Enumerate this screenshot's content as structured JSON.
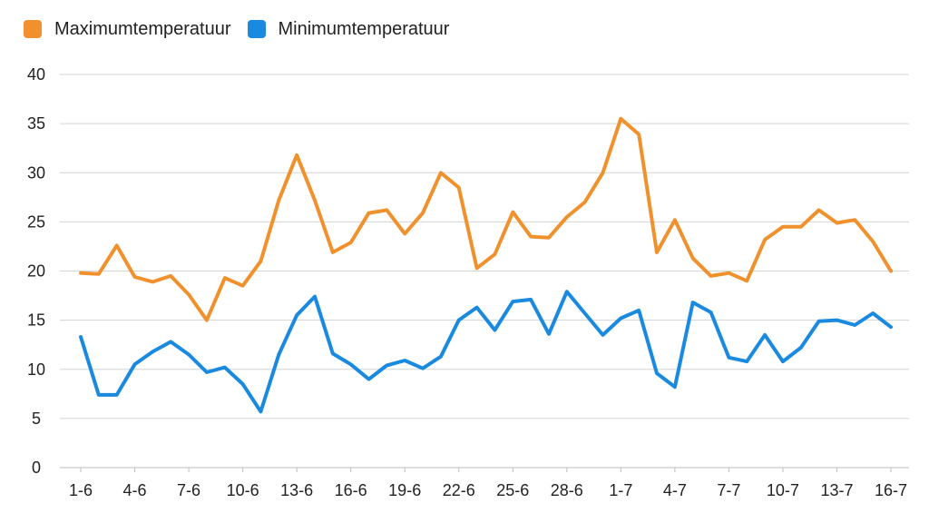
{
  "chart_data": {
    "type": "line",
    "title": "",
    "xlabel": "",
    "ylabel": "",
    "ylim": [
      0,
      40
    ],
    "yticks": [
      0,
      5,
      10,
      15,
      20,
      25,
      30,
      35,
      40
    ],
    "grid": true,
    "legend_position": "top-left",
    "x": [
      "1-6",
      "2-6",
      "3-6",
      "4-6",
      "5-6",
      "6-6",
      "7-6",
      "8-6",
      "9-6",
      "10-6",
      "11-6",
      "12-6",
      "13-6",
      "14-6",
      "15-6",
      "16-6",
      "17-6",
      "18-6",
      "19-6",
      "20-6",
      "21-6",
      "22-6",
      "23-6",
      "24-6",
      "25-6",
      "26-6",
      "27-6",
      "28-6",
      "29-6",
      "30-6",
      "1-7",
      "2-7",
      "3-7",
      "4-7",
      "5-7",
      "6-7",
      "7-7",
      "8-7",
      "9-7",
      "10-7",
      "11-7",
      "12-7",
      "13-7",
      "14-7",
      "15-7",
      "16-7"
    ],
    "xtick_labels": [
      "1-6",
      "4-6",
      "7-6",
      "10-6",
      "13-6",
      "16-6",
      "19-6",
      "22-6",
      "25-6",
      "28-6",
      "1-7",
      "4-7",
      "7-7",
      "10-7",
      "13-7",
      "16-7"
    ],
    "series": [
      {
        "name": "Maximumtemperatuur",
        "color": "#f0912e",
        "values": [
          19.8,
          19.7,
          22.6,
          19.4,
          18.9,
          19.5,
          17.6,
          15.0,
          19.3,
          18.5,
          21.0,
          27.2,
          31.8,
          27.2,
          21.9,
          22.9,
          25.9,
          26.2,
          23.8,
          25.9,
          30.0,
          28.5,
          20.3,
          21.7,
          26.0,
          23.5,
          23.4,
          25.5,
          27.0,
          30.0,
          35.5,
          33.9,
          21.9,
          25.2,
          21.3,
          19.5,
          19.8,
          19.0,
          23.2,
          24.5,
          24.5,
          26.2,
          24.9,
          25.2,
          23.0,
          20.0
        ]
      },
      {
        "name": "Minimumtemperatuur",
        "color": "#1a8ae0",
        "values": [
          13.3,
          7.4,
          7.4,
          10.5,
          11.8,
          12.8,
          11.5,
          9.7,
          10.2,
          8.5,
          5.7,
          11.5,
          15.5,
          17.4,
          11.6,
          10.5,
          9.0,
          10.4,
          10.9,
          10.1,
          11.3,
          15.0,
          16.3,
          14.0,
          16.9,
          17.1,
          13.6,
          17.9,
          15.7,
          13.5,
          15.2,
          16.0,
          9.6,
          8.2,
          16.8,
          15.8,
          11.2,
          10.8,
          13.5,
          10.8,
          12.2,
          14.9,
          15.0,
          14.5,
          15.7,
          14.3
        ]
      }
    ]
  }
}
